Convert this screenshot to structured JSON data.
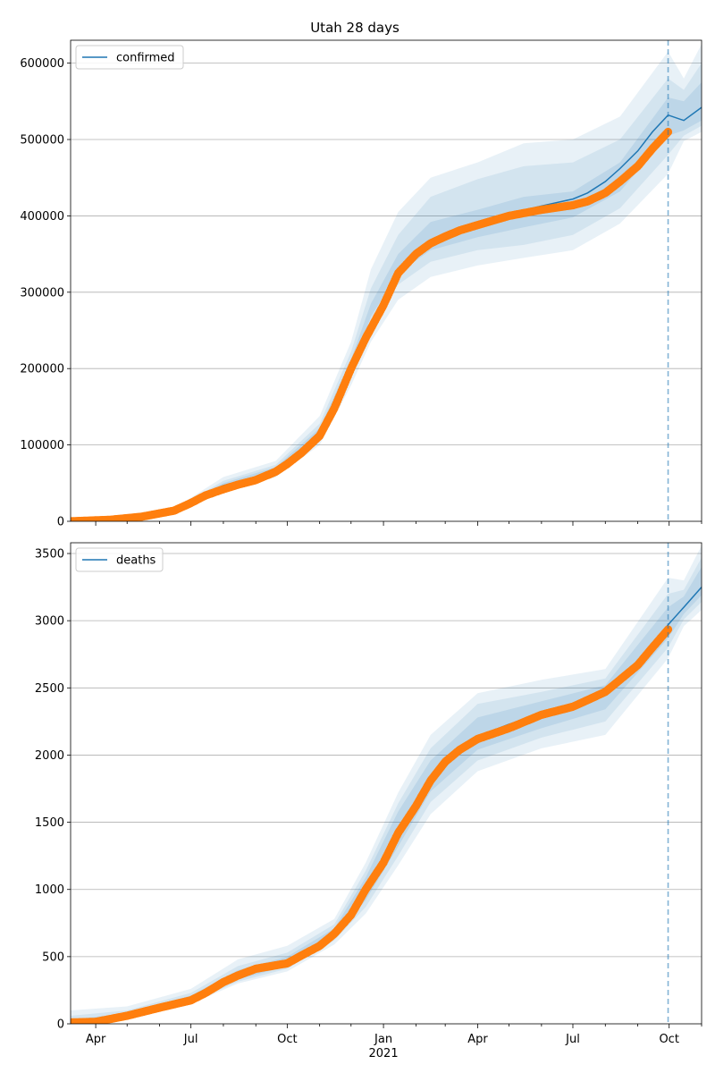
{
  "figure": {
    "title": "Utah 28 days"
  },
  "colors": {
    "model_line": "#1f77b4",
    "observed": "#ff7f0e",
    "band": "#1f77b4",
    "grid": "#b0b0b0",
    "vline": "#1f77b4"
  },
  "chart_data": [
    {
      "type": "line",
      "title": "Utah 28 days",
      "legend": [
        "confirmed"
      ],
      "legend_position": "top-left",
      "grid": "horizontal",
      "xlim": [
        "2020-03-08",
        "2021-11-01"
      ],
      "ylim": [
        0,
        630000
      ],
      "yticks": [
        0,
        100000,
        200000,
        300000,
        400000,
        500000,
        600000
      ],
      "forecast_start": "2021-09-30",
      "series": [
        {
          "name": "confirmed",
          "kind": "model",
          "x": [
            "2020-03-08",
            "2020-04-15",
            "2020-05-15",
            "2020-06-15",
            "2020-07-01",
            "2020-07-15",
            "2020-08-01",
            "2020-08-15",
            "2020-09-01",
            "2020-09-20",
            "2020-10-01",
            "2020-10-15",
            "2020-11-01",
            "2020-11-15",
            "2020-12-01",
            "2020-12-15",
            "2021-01-01",
            "2021-01-15",
            "2021-02-01",
            "2021-02-15",
            "2021-03-01",
            "2021-03-15",
            "2021-04-01",
            "2021-05-01",
            "2021-06-01",
            "2021-07-01",
            "2021-07-15",
            "2021-08-01",
            "2021-08-15",
            "2021-09-01",
            "2021-09-15",
            "2021-09-30",
            "2021-10-15",
            "2021-11-01"
          ],
          "y": [
            0,
            2000,
            6000,
            14000,
            25000,
            37000,
            47000,
            52000,
            57000,
            68000,
            80000,
            95000,
            118000,
            155000,
            205000,
            245000,
            290000,
            330000,
            355000,
            368000,
            376000,
            383000,
            390000,
            403000,
            413000,
            422000,
            430000,
            445000,
            462000,
            485000,
            510000,
            532000,
            525000,
            542000
          ]
        },
        {
          "name": "",
          "kind": "observed",
          "x": [
            "2020-03-08",
            "2020-04-15",
            "2020-05-15",
            "2020-06-15",
            "2020-07-01",
            "2020-07-15",
            "2020-08-01",
            "2020-08-15",
            "2020-09-01",
            "2020-09-20",
            "2020-10-01",
            "2020-10-15",
            "2020-11-01",
            "2020-11-15",
            "2020-12-01",
            "2020-12-15",
            "2021-01-01",
            "2021-01-15",
            "2021-02-01",
            "2021-02-15",
            "2021-03-01",
            "2021-03-15",
            "2021-04-01",
            "2021-05-01",
            "2021-06-01",
            "2021-07-01",
            "2021-07-15",
            "2021-08-01",
            "2021-08-15",
            "2021-09-01",
            "2021-09-15",
            "2021-09-30"
          ],
          "y": [
            0,
            2000,
            6000,
            14000,
            24000,
            34000,
            42000,
            48000,
            54000,
            65000,
            75000,
            90000,
            112000,
            148000,
            200000,
            240000,
            283000,
            325000,
            350000,
            364000,
            373000,
            381000,
            388000,
            400000,
            408000,
            414000,
            419000,
            430000,
            445000,
            465000,
            488000,
            510000
          ]
        }
      ],
      "bands": [
        {
          "level": "outer",
          "x": [
            "2020-03-08",
            "2020-06-15",
            "2020-08-01",
            "2020-09-20",
            "2020-11-01",
            "2020-12-01",
            "2020-12-20",
            "2021-01-15",
            "2021-02-15",
            "2021-04-01",
            "2021-05-15",
            "2021-07-01",
            "2021-08-15",
            "2021-09-30",
            "2021-10-15",
            "2021-11-01"
          ],
          "upper": [
            0,
            17000,
            58000,
            79000,
            138000,
            235000,
            330000,
            405000,
            450000,
            470000,
            495000,
            500000,
            530000,
            615000,
            580000,
            625000
          ],
          "lower": [
            0,
            11000,
            38000,
            58000,
            100000,
            178000,
            235000,
            290000,
            320000,
            335000,
            345000,
            355000,
            390000,
            455000,
            498000,
            510000
          ]
        },
        {
          "level": "middle",
          "x": [
            "2020-03-08",
            "2020-06-15",
            "2020-08-01",
            "2020-09-20",
            "2020-11-01",
            "2020-12-01",
            "2020-12-20",
            "2021-01-15",
            "2021-02-15",
            "2021-04-01",
            "2021-05-15",
            "2021-07-01",
            "2021-08-15",
            "2021-09-30",
            "2021-10-15",
            "2021-11-01"
          ],
          "upper": [
            0,
            15500,
            53000,
            74000,
            128000,
            222000,
            305000,
            375000,
            425000,
            448000,
            465000,
            470000,
            500000,
            580000,
            565000,
            600000
          ],
          "lower": [
            0,
            12000,
            43000,
            62000,
            108000,
            188000,
            255000,
            310000,
            340000,
            355000,
            362000,
            375000,
            410000,
            480000,
            505000,
            518000
          ]
        },
        {
          "level": "inner",
          "x": [
            "2020-03-08",
            "2020-06-15",
            "2020-08-01",
            "2020-09-20",
            "2020-11-01",
            "2020-12-01",
            "2020-12-20",
            "2021-01-15",
            "2021-02-15",
            "2021-04-01",
            "2021-05-15",
            "2021-07-01",
            "2021-08-15",
            "2021-09-30",
            "2021-10-15",
            "2021-11-01"
          ],
          "upper": [
            0,
            14800,
            50000,
            71000,
            122000,
            212000,
            285000,
            350000,
            392000,
            408000,
            425000,
            432000,
            470000,
            555000,
            550000,
            575000
          ],
          "lower": [
            0,
            13000,
            46000,
            65000,
            114000,
            198000,
            268000,
            325000,
            355000,
            372000,
            385000,
            398000,
            432000,
            505000,
            512000,
            525000
          ]
        }
      ]
    },
    {
      "type": "line",
      "title": "",
      "legend": [
        "deaths"
      ],
      "legend_position": "top-left",
      "grid": "horizontal",
      "xlim": [
        "2020-03-08",
        "2021-11-01"
      ],
      "ylim": [
        0,
        3580
      ],
      "yticks": [
        0,
        500,
        1000,
        1500,
        2000,
        2500,
        3000,
        3500
      ],
      "xticks": [
        "Apr",
        "Jul",
        "Oct",
        "Jan",
        "Apr",
        "Jul",
        "Oct"
      ],
      "xtick_dates": [
        "2020-04-01",
        "2020-07-01",
        "2020-10-01",
        "2021-01-01",
        "2021-04-01",
        "2021-07-01",
        "2021-10-01"
      ],
      "year_label": "2021",
      "forecast_start": "2021-09-30",
      "series": [
        {
          "name": "deaths",
          "kind": "model",
          "x": [
            "2020-03-08",
            "2020-04-01",
            "2020-05-01",
            "2020-06-01",
            "2020-07-01",
            "2020-07-15",
            "2020-08-01",
            "2020-08-15",
            "2020-09-01",
            "2020-10-01",
            "2020-10-15",
            "2020-11-01",
            "2020-11-15",
            "2020-12-01",
            "2020-12-15",
            "2021-01-01",
            "2021-01-15",
            "2021-02-01",
            "2021-02-15",
            "2021-03-01",
            "2021-03-15",
            "2021-04-01",
            "2021-05-01",
            "2021-06-01",
            "2021-07-01",
            "2021-08-01",
            "2021-08-15",
            "2021-09-01",
            "2021-09-15",
            "2021-09-30",
            "2021-10-15",
            "2021-11-01"
          ],
          "y": [
            10,
            15,
            60,
            120,
            180,
            240,
            320,
            370,
            420,
            460,
            520,
            590,
            680,
            820,
            1010,
            1220,
            1440,
            1650,
            1830,
            1960,
            2060,
            2140,
            2230,
            2310,
            2380,
            2480,
            2560,
            2680,
            2820,
            2970,
            3100,
            3250
          ]
        },
        {
          "name": "",
          "kind": "observed",
          "x": [
            "2020-03-08",
            "2020-04-01",
            "2020-05-01",
            "2020-06-01",
            "2020-07-01",
            "2020-07-15",
            "2020-08-01",
            "2020-08-15",
            "2020-09-01",
            "2020-10-01",
            "2020-10-15",
            "2020-11-01",
            "2020-11-15",
            "2020-12-01",
            "2020-12-15",
            "2021-01-01",
            "2021-01-15",
            "2021-02-01",
            "2021-02-15",
            "2021-03-01",
            "2021-03-15",
            "2021-04-01",
            "2021-05-01",
            "2021-06-01",
            "2021-07-01",
            "2021-08-01",
            "2021-08-15",
            "2021-09-01",
            "2021-09-15",
            "2021-09-30"
          ],
          "y": [
            10,
            15,
            60,
            120,
            175,
            230,
            310,
            360,
            410,
            450,
            510,
            580,
            670,
            810,
            1000,
            1200,
            1420,
            1620,
            1810,
            1950,
            2040,
            2120,
            2200,
            2300,
            2360,
            2470,
            2560,
            2670,
            2800,
            2935
          ]
        }
      ],
      "bands": [
        {
          "level": "outer",
          "x": [
            "2020-03-08",
            "2020-05-01",
            "2020-07-01",
            "2020-08-15",
            "2020-10-01",
            "2020-11-15",
            "2020-12-15",
            "2021-01-15",
            "2021-02-15",
            "2021-04-01",
            "2021-06-01",
            "2021-08-01",
            "2021-09-30",
            "2021-10-15",
            "2021-11-01"
          ],
          "upper": [
            100,
            130,
            260,
            480,
            580,
            780,
            1200,
            1720,
            2150,
            2460,
            2560,
            2640,
            3320,
            3300,
            3560
          ],
          "lower": [
            0,
            40,
            150,
            300,
            390,
            590,
            820,
            1180,
            1560,
            1880,
            2050,
            2150,
            2720,
            2960,
            3080
          ]
        },
        {
          "level": "middle",
          "x": [
            "2020-03-08",
            "2020-05-01",
            "2020-07-01",
            "2020-08-15",
            "2020-10-01",
            "2020-11-15",
            "2020-12-15",
            "2021-01-15",
            "2021-02-15",
            "2021-04-01",
            "2021-06-01",
            "2021-08-01",
            "2021-09-30",
            "2021-10-15",
            "2021-11-01"
          ],
          "upper": [
            60,
            100,
            230,
            430,
            530,
            740,
            1140,
            1640,
            2050,
            2380,
            2470,
            2570,
            3200,
            3230,
            3470
          ],
          "lower": [
            0,
            45,
            160,
            315,
            410,
            620,
            870,
            1250,
            1650,
            1960,
            2130,
            2250,
            2800,
            3010,
            3140
          ]
        },
        {
          "level": "inner",
          "x": [
            "2020-03-08",
            "2020-05-01",
            "2020-07-01",
            "2020-08-15",
            "2020-10-01",
            "2020-11-15",
            "2020-12-15",
            "2021-01-15",
            "2021-02-15",
            "2021-04-01",
            "2021-06-01",
            "2021-08-01",
            "2021-09-30",
            "2021-10-15",
            "2021-11-01"
          ],
          "upper": [
            30,
            80,
            210,
            400,
            500,
            710,
            1090,
            1580,
            1960,
            2280,
            2400,
            2520,
            3100,
            3180,
            3400
          ],
          "lower": [
            0,
            50,
            170,
            330,
            430,
            650,
            920,
            1320,
            1730,
            2040,
            2200,
            2340,
            2870,
            3050,
            3190
          ]
        }
      ]
    }
  ]
}
